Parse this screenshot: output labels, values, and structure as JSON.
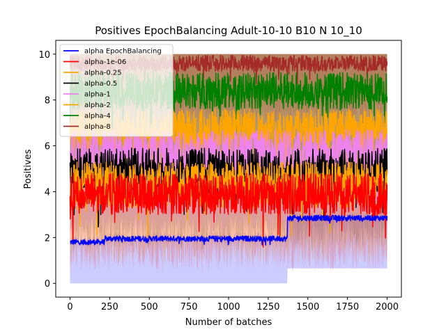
{
  "chart_data": {
    "type": "line",
    "title": "Positives EpochBalancing Adult-10-10 B10 N 10_10",
    "xlabel": "Number of batches",
    "ylabel": "Positives",
    "xlim": [
      -90,
      2090
    ],
    "ylim": [
      -0.6,
      10.6
    ],
    "xticks": [
      0,
      250,
      500,
      750,
      1000,
      1250,
      1500,
      1750,
      2000
    ],
    "yticks": [
      0,
      2,
      4,
      6,
      8,
      10
    ],
    "grid": false,
    "legend_position": "upper-left",
    "n_batches": 2000,
    "series": [
      {
        "name": "alpha EpochBalancing",
        "color": "#0000ff",
        "mean_segments": [
          [
            0,
            220,
            1.8
          ],
          [
            220,
            1370,
            1.95
          ],
          [
            1370,
            2000,
            2.85
          ]
        ],
        "noise": 0.12,
        "band": {
          "segments": [
            [
              0,
              1370,
              0.0
            ],
            [
              1370,
              2000,
              0.65
            ]
          ],
          "upper_noise": 0.25,
          "color": "#0000ff",
          "opacity": 0.2
        }
      },
      {
        "name": "alpha-1e-06",
        "color": "#ff0000",
        "mean": 3.9,
        "noise": 0.9,
        "band": {
          "lower": 1.3,
          "color": "#ff0000",
          "opacity": 0.2
        }
      },
      {
        "name": "alpha-0.25",
        "color": "#ffa500",
        "mean": 4.3,
        "noise": 1.0,
        "band": {
          "lower": 1.6,
          "color": "#ffa500",
          "opacity": 0.2
        }
      },
      {
        "name": "alpha-0.5",
        "color": "#000000",
        "mean": 4.9,
        "noise": 1.0,
        "band": {
          "lower": 2.2,
          "color": "#000000",
          "opacity": 0.15
        }
      },
      {
        "name": "alpha-1",
        "color": "#ee82ee",
        "mean": 5.7,
        "noise": 1.0,
        "band": {
          "lower": 2.8,
          "color": "#ee82ee",
          "opacity": 0.3
        }
      },
      {
        "name": "alpha-2",
        "color": "#ffa500",
        "mean": 6.7,
        "noise": 0.9,
        "band": {
          "lower": 4.0,
          "color": "#ffa500",
          "opacity": 0.2
        }
      },
      {
        "name": "alpha-4",
        "color": "#008000",
        "mean": 8.4,
        "noise": 0.8,
        "band": {
          "lower": 5.5,
          "color": "#008000",
          "opacity": 0.2
        }
      },
      {
        "name": "alpha-8",
        "color": "#a52a2a",
        "mean": 9.6,
        "noise": 0.35,
        "band": {
          "lower": 7.5,
          "color": "#a52a2a",
          "opacity": 0.2
        }
      }
    ]
  }
}
